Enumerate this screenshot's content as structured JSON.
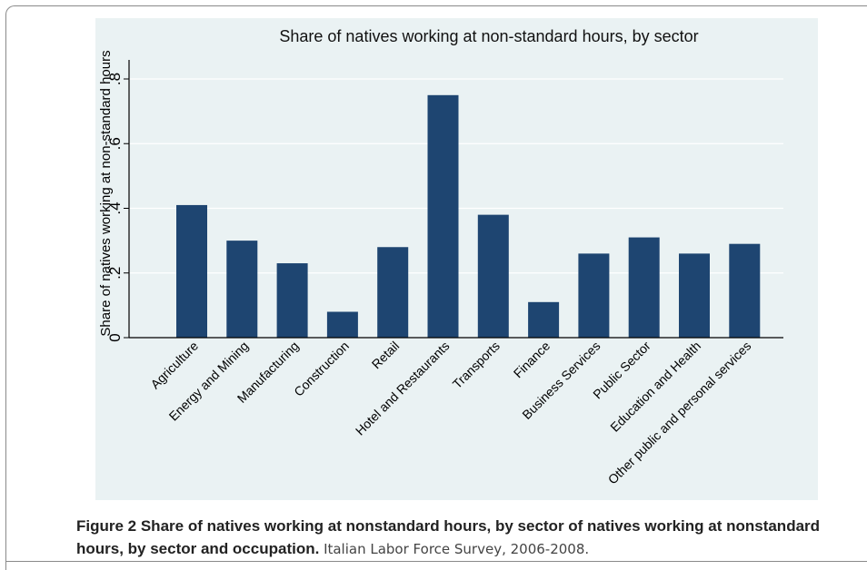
{
  "chart_data": {
    "type": "bar",
    "title": "Share of natives working at non-standard hours, by sector",
    "ylabel": "Share of natives working at non-standard hours",
    "xlabel": "",
    "categories": [
      "Agriculture",
      "Energy and Mining",
      "Manufacturing",
      "Construction",
      "Retail",
      "Hotel and Restaurants",
      "Transports",
      "Finance",
      "Business Services",
      "Public Sector",
      "Education and Health",
      "Other public and personal services"
    ],
    "values": [
      0.41,
      0.3,
      0.23,
      0.08,
      0.28,
      0.75,
      0.38,
      0.11,
      0.26,
      0.31,
      0.26,
      0.29
    ],
    "ylim": [
      0,
      0.85
    ],
    "yticks": [
      0,
      0.2,
      0.4,
      0.6,
      0.8
    ],
    "ytick_labels": [
      "0",
      ".2",
      ".4",
      ".6",
      ".8"
    ],
    "grid": true,
    "bar_color": "#1e4571",
    "background_color": "#eaf2f3"
  },
  "caption": {
    "lead": "Figure 2 Share of natives working at nonstandard hours, by sector of natives working at nonstandard hours, by sector and occupation.",
    "source": "Italian Labor Force Survey, 2006-2008."
  }
}
